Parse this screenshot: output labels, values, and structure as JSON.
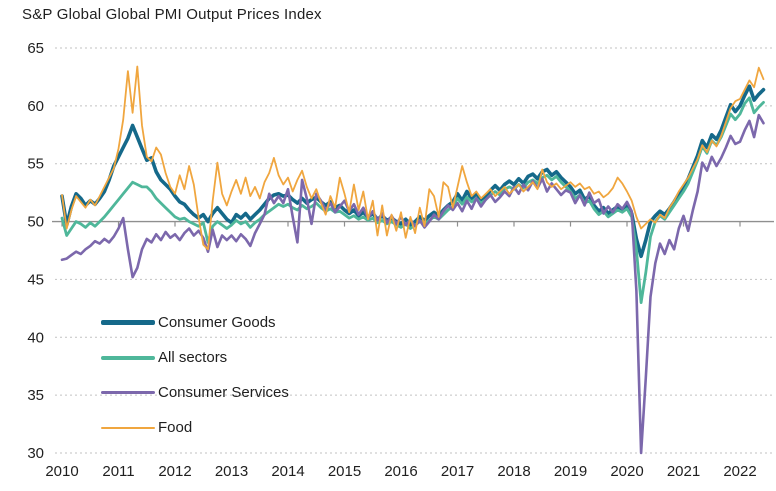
{
  "title": "S&P Global Global PMI Output Prices Index",
  "chart_data": {
    "type": "line",
    "title": "S&P Global Global PMI Output Prices Index",
    "xlabel": "",
    "ylabel": "",
    "ylim": [
      30,
      65
    ],
    "y_ticks": [
      65,
      60,
      55,
      50,
      45,
      40,
      35,
      30
    ],
    "x_labels": [
      "2010",
      "2011",
      "2012",
      "2013",
      "2014",
      "2015",
      "2016",
      "2017",
      "2018",
      "2019",
      "2020",
      "2021",
      "2022"
    ],
    "x_start": "2010-01",
    "x_frequency": "monthly",
    "axis_baseline_value": 50,
    "grid": "dotted-horizontal",
    "legend_position": "inside-lower-left",
    "series": [
      {
        "name": "Consumer Goods",
        "color": "#15698a",
        "stroke_width": 3.6,
        "values": [
          52.2,
          49.7,
          51.3,
          52.4,
          52.0,
          51.4,
          51.8,
          51.5,
          52.0,
          52.6,
          53.6,
          54.8,
          55.6,
          56.4,
          57.2,
          58.3,
          57.3,
          56.3,
          55.3,
          55.5,
          54.3,
          53.6,
          53.2,
          52.8,
          52.2,
          51.7,
          51.5,
          51.0,
          50.6,
          50.3,
          50.6,
          50.0,
          50.7,
          51.2,
          50.7,
          50.2,
          49.9,
          50.6,
          50.3,
          50.7,
          50.2,
          50.6,
          51.0,
          51.5,
          52.0,
          52.3,
          52.4,
          52.2,
          52.3,
          51.9,
          51.6,
          52.0,
          51.6,
          51.9,
          52.1,
          51.7,
          51.4,
          51.7,
          51.2,
          51.4,
          51.0,
          50.7,
          51.0,
          50.5,
          50.8,
          50.4,
          50.7,
          50.2,
          50.5,
          50.1,
          50.3,
          50.0,
          49.8,
          50.2,
          49.7,
          50.0,
          50.4,
          50.1,
          50.5,
          50.8,
          50.5,
          51.0,
          51.4,
          51.7,
          52.4,
          51.8,
          52.6,
          52.0,
          52.4,
          51.9,
          52.2,
          52.7,
          53.1,
          52.7,
          53.2,
          53.5,
          53.2,
          53.7,
          53.3,
          53.9,
          54.1,
          53.7,
          54.3,
          54.5,
          54.0,
          54.3,
          53.8,
          53.4,
          53.0,
          52.4,
          52.7,
          51.9,
          52.2,
          51.4,
          50.9,
          51.2,
          50.7,
          51.0,
          51.3,
          51.0,
          51.4,
          50.7,
          48.5,
          47.0,
          48.4,
          50.0,
          50.5,
          50.9,
          50.6,
          51.1,
          51.7,
          52.4,
          53.0,
          53.7,
          54.7,
          55.7,
          57.0,
          56.4,
          57.5,
          57.1,
          57.9,
          59.0,
          60.1,
          59.5,
          60.0,
          60.9,
          61.7,
          60.5,
          61.0,
          61.4
        ]
      },
      {
        "name": "All sectors",
        "color": "#4fb79a",
        "stroke_width": 2.8,
        "values": [
          50.3,
          48.8,
          49.4,
          50.0,
          49.8,
          49.5,
          49.9,
          49.6,
          50.0,
          50.4,
          50.9,
          51.4,
          51.9,
          52.4,
          52.9,
          53.4,
          53.2,
          53.0,
          53.0,
          52.6,
          52.0,
          51.6,
          51.2,
          50.8,
          50.4,
          50.2,
          50.3,
          50.0,
          49.8,
          49.6,
          49.9,
          48.2,
          49.6,
          50.0,
          49.7,
          49.4,
          49.7,
          50.1,
          49.8,
          50.0,
          49.5,
          49.9,
          50.2,
          50.6,
          50.9,
          51.2,
          51.5,
          51.3,
          51.5,
          51.2,
          51.0,
          51.4,
          51.1,
          51.3,
          51.6,
          51.2,
          50.9,
          51.1,
          50.8,
          50.9,
          50.6,
          50.3,
          50.5,
          50.2,
          50.4,
          50.1,
          50.3,
          49.9,
          50.1,
          49.8,
          50.0,
          49.7,
          49.5,
          49.8,
          49.4,
          49.7,
          50.0,
          49.8,
          50.1,
          50.4,
          50.2,
          50.6,
          51.0,
          51.3,
          52.0,
          51.5,
          52.1,
          51.7,
          52.0,
          51.6,
          51.9,
          52.3,
          52.6,
          52.3,
          52.8,
          53.0,
          52.8,
          53.2,
          52.9,
          53.4,
          53.6,
          53.3,
          53.8,
          54.0,
          53.6,
          53.9,
          53.4,
          53.0,
          52.6,
          52.0,
          52.3,
          51.6,
          51.8,
          51.1,
          50.6,
          50.9,
          50.4,
          50.7,
          51.0,
          50.8,
          51.1,
          50.4,
          47.6,
          43.0,
          45.6,
          48.7,
          50.0,
          50.5,
          50.2,
          50.8,
          51.4,
          52.0,
          52.6,
          53.3,
          54.3,
          55.3,
          56.5,
          55.9,
          57.0,
          56.6,
          57.3,
          58.3,
          59.3,
          58.8,
          59.3,
          60.2,
          60.7,
          59.4,
          59.9,
          60.3
        ]
      },
      {
        "name": "Consumer Services",
        "color": "#7c68ac",
        "stroke_width": 2.6,
        "values": [
          46.7,
          46.8,
          47.1,
          47.4,
          47.2,
          47.6,
          47.9,
          48.3,
          48.1,
          48.5,
          48.2,
          48.7,
          49.4,
          50.3,
          47.6,
          45.2,
          46.0,
          47.6,
          48.5,
          48.2,
          48.9,
          48.4,
          49.1,
          48.6,
          48.9,
          48.4,
          49.0,
          49.4,
          48.8,
          49.2,
          48.6,
          47.4,
          49.3,
          47.8,
          48.8,
          48.4,
          48.8,
          48.3,
          48.9,
          48.5,
          47.9,
          49.0,
          49.8,
          50.6,
          52.4,
          51.6,
          52.2,
          51.6,
          52.8,
          50.4,
          48.2,
          53.6,
          52.0,
          49.8,
          52.4,
          51.8,
          51.0,
          51.6,
          50.8,
          51.3,
          51.8,
          50.9,
          51.5,
          50.6,
          51.2,
          50.3,
          50.9,
          50.1,
          50.7,
          49.9,
          50.5,
          49.8,
          50.4,
          49.7,
          50.2,
          49.6,
          50.1,
          49.5,
          50.0,
          50.6,
          50.2,
          50.9,
          51.4,
          51.0,
          51.6,
          50.9,
          51.8,
          51.1,
          52.0,
          51.3,
          51.9,
          52.3,
          51.7,
          52.1,
          52.6,
          52.2,
          53.0,
          52.4,
          53.2,
          52.7,
          53.5,
          52.9,
          53.7,
          52.6,
          53.3,
          52.8,
          52.3,
          52.7,
          52.5,
          51.6,
          52.3,
          51.4,
          52.5,
          51.6,
          51.9,
          50.7,
          51.3,
          50.8,
          51.5,
          51.1,
          51.7,
          50.9,
          44.0,
          30.0,
          36.5,
          43.5,
          46.4,
          48.1,
          47.2,
          48.4,
          47.6,
          49.4,
          50.5,
          49.2,
          51.0,
          52.6,
          55.1,
          54.4,
          55.6,
          54.8,
          55.5,
          56.4,
          57.4,
          56.7,
          56.9,
          57.9,
          58.7,
          57.3,
          59.2,
          58.5
        ]
      },
      {
        "name": "Food",
        "color": "#f0a63f",
        "stroke_width": 1.8,
        "values": [
          52.3,
          49.4,
          51.0,
          52.2,
          51.7,
          51.2,
          51.9,
          51.4,
          52.2,
          53.0,
          53.8,
          54.6,
          56.3,
          58.8,
          63.0,
          59.4,
          63.4,
          58.3,
          55.6,
          55.2,
          56.4,
          55.8,
          54.2,
          53.0,
          52.4,
          54.0,
          52.8,
          54.8,
          53.2,
          50.4,
          48.0,
          47.6,
          51.8,
          55.1,
          52.4,
          51.4,
          52.6,
          53.6,
          52.4,
          53.8,
          52.2,
          53.0,
          52.0,
          53.4,
          54.2,
          55.5,
          54.0,
          53.2,
          53.8,
          52.6,
          53.6,
          54.4,
          53.0,
          52.0,
          52.8,
          51.6,
          50.6,
          52.2,
          51.2,
          53.8,
          52.4,
          50.8,
          53.2,
          51.0,
          52.6,
          50.2,
          51.8,
          48.8,
          51.4,
          48.8,
          50.6,
          49.2,
          50.8,
          48.6,
          50.4,
          49.0,
          51.2,
          49.6,
          52.8,
          52.2,
          50.4,
          53.4,
          53.0,
          51.2,
          53.0,
          54.8,
          53.4,
          52.2,
          52.6,
          52.0,
          52.4,
          52.8,
          52.2,
          52.6,
          53.0,
          52.4,
          52.8,
          53.2,
          52.6,
          53.0,
          53.4,
          52.8,
          54.5,
          53.4,
          53.0,
          53.3,
          52.8,
          53.1,
          53.4,
          53.0,
          53.3,
          52.8,
          53.0,
          52.4,
          52.6,
          52.1,
          52.4,
          52.9,
          53.8,
          53.3,
          52.6,
          51.8,
          50.4,
          49.4,
          49.8,
          50.2,
          49.9,
          50.6,
          50.3,
          51.2,
          51.8,
          52.6,
          53.2,
          53.8,
          54.6,
          55.4,
          56.6,
          56.0,
          57.0,
          56.5,
          57.4,
          58.6,
          59.8,
          60.4,
          60.6,
          61.4,
          62.2,
          61.6,
          63.3,
          62.3
        ]
      }
    ],
    "colors": {
      "grid": "#c2c2c2",
      "axis": "#8f8f8f",
      "text": "#1f1f1f"
    }
  }
}
